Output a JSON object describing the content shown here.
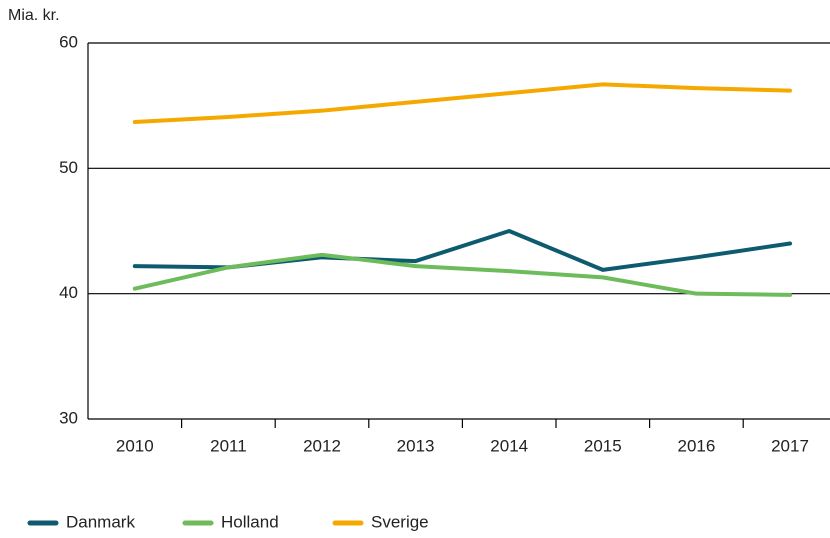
{
  "chart_data": {
    "type": "line",
    "y_label": "Mia. kr.",
    "categories": [
      "2010",
      "2011",
      "2012",
      "2013",
      "2014",
      "2015",
      "2016",
      "2017"
    ],
    "series": [
      {
        "name": "Danmark",
        "color": "#0e5a6e",
        "values": [
          42.2,
          42.1,
          42.9,
          42.6,
          45.0,
          41.9,
          42.9,
          44.0
        ]
      },
      {
        "name": "Holland",
        "color": "#6dbb5a",
        "values": [
          40.4,
          42.1,
          43.1,
          42.2,
          41.8,
          41.3,
          40.0,
          39.9
        ]
      },
      {
        "name": "Sverige",
        "color": "#f5a800",
        "values": [
          53.7,
          54.1,
          54.6,
          55.3,
          56.0,
          56.7,
          56.4,
          56.2
        ]
      }
    ],
    "ylim": [
      30,
      60
    ],
    "yticks": [
      30,
      40,
      50,
      60
    ],
    "grid": true,
    "legend": "bottom"
  }
}
